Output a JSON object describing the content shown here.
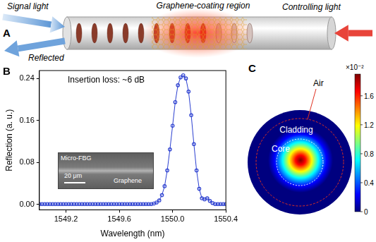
{
  "panel_a": {
    "letter": "A",
    "region_label": "Graphene-coating region",
    "signal_label": "Signal light",
    "reflected_label": "Reflected",
    "control_label": "Controlling light"
  },
  "chart_data": {
    "type": "line",
    "panel_label": "B",
    "annotation": "Insertion loss: ~6 dB",
    "x_label": "Wavelength (nm)",
    "y_label": "Reflection (a. u.)",
    "x": [
      1549.0,
      1549.02,
      1549.04,
      1549.06,
      1549.08,
      1549.1,
      1549.12,
      1549.14,
      1549.16,
      1549.18,
      1549.2,
      1549.22,
      1549.24,
      1549.26,
      1549.28,
      1549.3,
      1549.32,
      1549.34,
      1549.36,
      1549.38,
      1549.4,
      1549.42,
      1549.44,
      1549.46,
      1549.48,
      1549.5,
      1549.52,
      1549.54,
      1549.56,
      1549.58,
      1549.6,
      1549.62,
      1549.64,
      1549.66,
      1549.68,
      1549.7,
      1549.72,
      1549.74,
      1549.76,
      1549.78,
      1549.8,
      1549.82,
      1549.84,
      1549.86,
      1549.88,
      1549.9,
      1549.92,
      1549.94,
      1549.96,
      1549.98,
      1550.0,
      1550.02,
      1550.04,
      1550.06,
      1550.08,
      1550.1,
      1550.12,
      1550.14,
      1550.16,
      1550.18,
      1550.2,
      1550.22,
      1550.24,
      1550.26,
      1550.28,
      1550.3,
      1550.32,
      1550.34,
      1550.36,
      1550.38,
      1550.4
    ],
    "values": [
      0.001,
      0.001,
      0.001,
      0.001,
      0.001,
      0.001,
      0.001,
      0.001,
      0.001,
      0.001,
      0.001,
      0.001,
      0.001,
      0.001,
      0.001,
      0.001,
      0.001,
      0.001,
      0.001,
      0.001,
      0.001,
      0.001,
      0.001,
      0.001,
      0.001,
      0.001,
      0.001,
      0.001,
      0.001,
      0.001,
      0.001,
      0.001,
      0.001,
      0.001,
      0.001,
      0.001,
      0.001,
      0.001,
      0.001,
      0.001,
      0.001,
      0.001,
      0.001,
      0.002,
      0.004,
      0.008,
      0.018,
      0.035,
      0.065,
      0.105,
      0.15,
      0.195,
      0.227,
      0.242,
      0.246,
      0.24,
      0.215,
      0.17,
      0.115,
      0.065,
      0.03,
      0.012,
      0.01,
      0.012,
      0.007,
      0.003,
      0.001,
      0.001,
      0.001,
      0.001,
      0.001
    ],
    "color": "#2b3fd0",
    "marker": "circle",
    "grid": false,
    "xlim": [
      1549.0,
      1550.4
    ],
    "xticks": [
      1549.2,
      1549.6,
      {
        "value": 1550.0,
        "label": "1550.0"
      },
      1550.4
    ],
    "ylim": [
      -0.01,
      0.255
    ],
    "yticks": [
      {
        "value": 0,
        "label": "0.00"
      },
      0.08,
      0.16,
      0.24
    ],
    "inset": {
      "fiber_label": "Micro-FBG",
      "coating_label": "Graphene",
      "scale_bar": "20 μm"
    }
  },
  "panel_c": {
    "letter": "C",
    "air_label": "Air",
    "cladding_label": "Cladding",
    "core_label": "Core",
    "colorbar": {
      "range": [
        0,
        1.9
      ],
      "ticks": [
        0,
        0.4,
        0.8,
        1.2,
        1.6
      ],
      "multiplier": "×10⁻²"
    }
  }
}
